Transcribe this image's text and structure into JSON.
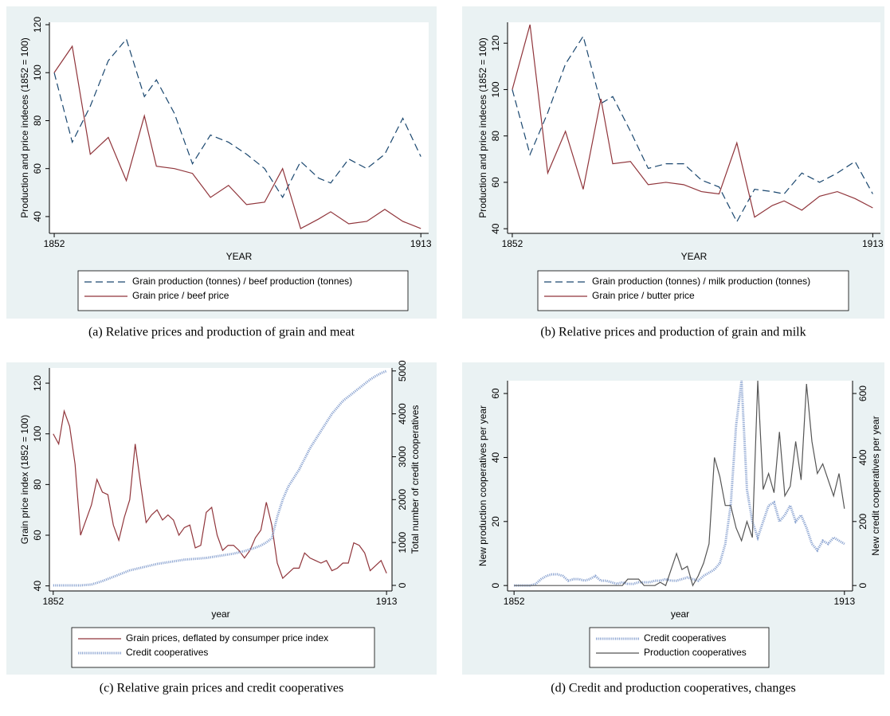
{
  "chart_data": [
    {
      "type": "line",
      "caption": "(a) Relative prices and production of grain and meat",
      "xlabel": "YEAR",
      "ylabel": "Production and price indeces (1852 = 100)",
      "x": [
        1852,
        1855,
        1858,
        1861,
        1864,
        1867,
        1869,
        1872,
        1875,
        1878,
        1881,
        1884,
        1887,
        1890,
        1893,
        1896,
        1898,
        1901,
        1904,
        1907,
        1910,
        1913
      ],
      "xlim": [
        1851.2,
        1914.3
      ],
      "xticks": [
        1852,
        1913
      ],
      "ylim": [
        33,
        121
      ],
      "yticks": [
        40,
        60,
        80,
        100,
        120
      ],
      "series": [
        {
          "name": "Grain production (tonnes) / beef production (tonnes)",
          "color": "#1a476f",
          "dash": "dashed",
          "values": [
            100,
            71,
            86,
            105,
            114,
            90,
            97,
            83,
            62,
            74,
            71,
            66,
            60,
            48,
            63,
            56,
            54,
            64,
            60,
            66,
            81,
            65
          ]
        },
        {
          "name": "Grain price / beef price",
          "color": "#90353b",
          "dash": "solid",
          "values": [
            100,
            111,
            66,
            73,
            55,
            82,
            61,
            60,
            58,
            48,
            53,
            45,
            46,
            60,
            35,
            39,
            42,
            37,
            38,
            43,
            38,
            35
          ]
        }
      ]
    },
    {
      "type": "line",
      "caption": "(b) Relative prices and production of grain and milk",
      "xlabel": "YEAR",
      "ylabel": "Production and price indeces (1852 = 100)",
      "x": [
        1852,
        1855,
        1858,
        1861,
        1864,
        1867,
        1869,
        1872,
        1875,
        1878,
        1881,
        1884,
        1887,
        1890,
        1893,
        1896,
        1898,
        1901,
        1904,
        1907,
        1910,
        1913
      ],
      "xlim": [
        1851.2,
        1914.3
      ],
      "xticks": [
        1852,
        1913
      ],
      "ylim": [
        38,
        129
      ],
      "yticks": [
        40,
        60,
        80,
        100,
        120
      ],
      "series": [
        {
          "name": "Grain production (tonnes) / milk production (tonnes)",
          "color": "#1a476f",
          "dash": "dashed",
          "values": [
            100,
            72,
            90,
            111,
            123,
            94,
            97,
            82,
            66,
            68,
            68,
            61,
            58,
            43,
            57,
            56,
            55,
            64,
            60,
            64,
            69,
            55
          ]
        },
        {
          "name": "Grain price / butter price",
          "color": "#90353b",
          "dash": "solid",
          "values": [
            100,
            128,
            64,
            82,
            57,
            96,
            68,
            69,
            59,
            60,
            59,
            56,
            55,
            77,
            45,
            50,
            52,
            48,
            54,
            56,
            53,
            49
          ]
        }
      ]
    },
    {
      "type": "line",
      "caption": "(c) Relative grain prices and credit cooperatives",
      "xlabel": "year",
      "ylabel": "Grain price index (1852 = 100)",
      "y2label": "Total number of credit cooperatives",
      "x": [
        1852,
        1853,
        1854,
        1855,
        1856,
        1857,
        1858,
        1859,
        1860,
        1861,
        1862,
        1863,
        1864,
        1865,
        1866,
        1867,
        1868,
        1869,
        1870,
        1871,
        1872,
        1873,
        1874,
        1875,
        1876,
        1877,
        1878,
        1879,
        1880,
        1881,
        1882,
        1883,
        1884,
        1885,
        1886,
        1887,
        1888,
        1889,
        1890,
        1891,
        1892,
        1893,
        1894,
        1895,
        1896,
        1897,
        1898,
        1899,
        1900,
        1901,
        1902,
        1903,
        1904,
        1905,
        1906,
        1907,
        1908,
        1909,
        1910,
        1911,
        1912,
        1913
      ],
      "xlim": [
        1851.3,
        1914.0
      ],
      "xticks": [
        1852,
        1913
      ],
      "ylim": [
        38,
        126
      ],
      "yticks": [
        40,
        60,
        80,
        100,
        120
      ],
      "y2lim": [
        -130,
        5070
      ],
      "y2ticks": [
        0,
        1000,
        2000,
        3000,
        4000,
        5000
      ],
      "series": [
        {
          "name": "Grain prices, deflated by consumper price index",
          "color": "#90353b",
          "dash": "solid",
          "values": [
            100,
            96,
            109,
            103,
            88,
            60,
            66,
            72,
            82,
            77,
            76,
            64,
            58,
            67,
            74,
            96,
            80,
            65,
            68,
            70,
            66,
            68,
            66,
            60,
            63,
            64,
            55,
            56,
            69,
            71,
            60,
            54,
            56,
            56,
            54,
            51,
            54,
            59,
            62,
            73,
            64,
            49,
            43,
            45,
            47,
            47,
            53,
            51,
            50,
            49,
            50,
            46,
            47,
            49,
            49,
            57,
            56,
            53,
            46,
            48,
            50,
            45
          ]
        },
        {
          "name": "Credit cooperatives",
          "color": "#8ea6d2",
          "dash": "dotted",
          "axis": "y2",
          "values": [
            0,
            0,
            0,
            0,
            0,
            0,
            10,
            20,
            60,
            100,
            150,
            200,
            250,
            300,
            350,
            380,
            410,
            440,
            470,
            500,
            520,
            540,
            560,
            580,
            600,
            610,
            620,
            630,
            640,
            660,
            680,
            700,
            720,
            740,
            770,
            800,
            840,
            880,
            930,
            1000,
            1100,
            1600,
            2000,
            2300,
            2500,
            2700,
            2950,
            3200,
            3400,
            3600,
            3800,
            4000,
            4150,
            4300,
            4400,
            4500,
            4600,
            4700,
            4800,
            4880,
            4950,
            5000
          ]
        }
      ]
    },
    {
      "type": "line",
      "caption": "(d) Credit and production cooperatives, changes",
      "xlabel": "year",
      "ylabel": "New production cooperatives per year",
      "y2label": "New credit cooperatives per year",
      "x": [
        1852,
        1853,
        1854,
        1855,
        1856,
        1857,
        1858,
        1859,
        1860,
        1861,
        1862,
        1863,
        1864,
        1865,
        1866,
        1867,
        1868,
        1869,
        1870,
        1871,
        1872,
        1873,
        1874,
        1875,
        1876,
        1877,
        1878,
        1879,
        1880,
        1881,
        1882,
        1883,
        1884,
        1885,
        1886,
        1887,
        1888,
        1889,
        1890,
        1891,
        1892,
        1893,
        1894,
        1895,
        1896,
        1897,
        1898,
        1899,
        1900,
        1901,
        1902,
        1903,
        1904,
        1905,
        1906,
        1907,
        1908,
        1909,
        1910,
        1911,
        1912,
        1913
      ],
      "xlim": [
        1850.8,
        1914.5
      ],
      "xticks": [
        1852,
        1913
      ],
      "ylim": [
        -1.7,
        64
      ],
      "yticks": [
        0,
        20,
        40,
        60
      ],
      "y2lim": [
        -17,
        640
      ],
      "y2ticks": [
        0,
        200,
        400,
        600
      ],
      "series": [
        {
          "name": "Credit cooperatives",
          "color": "#8ea6d2",
          "dash": "dotted",
          "axis": "y2",
          "values": [
            0,
            0,
            0,
            0,
            5,
            20,
            30,
            35,
            35,
            30,
            15,
            20,
            20,
            15,
            20,
            30,
            15,
            15,
            10,
            5,
            10,
            5,
            5,
            10,
            10,
            10,
            15,
            15,
            20,
            15,
            15,
            20,
            25,
            20,
            15,
            30,
            40,
            50,
            70,
            130,
            250,
            500,
            640,
            300,
            200,
            150,
            200,
            250,
            260,
            200,
            220,
            250,
            200,
            220,
            180,
            130,
            110,
            140,
            130,
            150,
            140,
            130
          ]
        },
        {
          "name": "Production cooperatives",
          "color": "#555555",
          "dash": "solid",
          "values": [
            0,
            0,
            0,
            0,
            0,
            0,
            0,
            0,
            0,
            0,
            0,
            0,
            0,
            0,
            0,
            0,
            0,
            0,
            0,
            0,
            0,
            2,
            2,
            2,
            0,
            0,
            0,
            1,
            0,
            5,
            10,
            5,
            6,
            0,
            3,
            7,
            13,
            40,
            34,
            25,
            25,
            18,
            14,
            20,
            15,
            64,
            30,
            35,
            29,
            48,
            28,
            31,
            45,
            33,
            63,
            45,
            35,
            38,
            33,
            28,
            35,
            24
          ]
        }
      ]
    }
  ]
}
